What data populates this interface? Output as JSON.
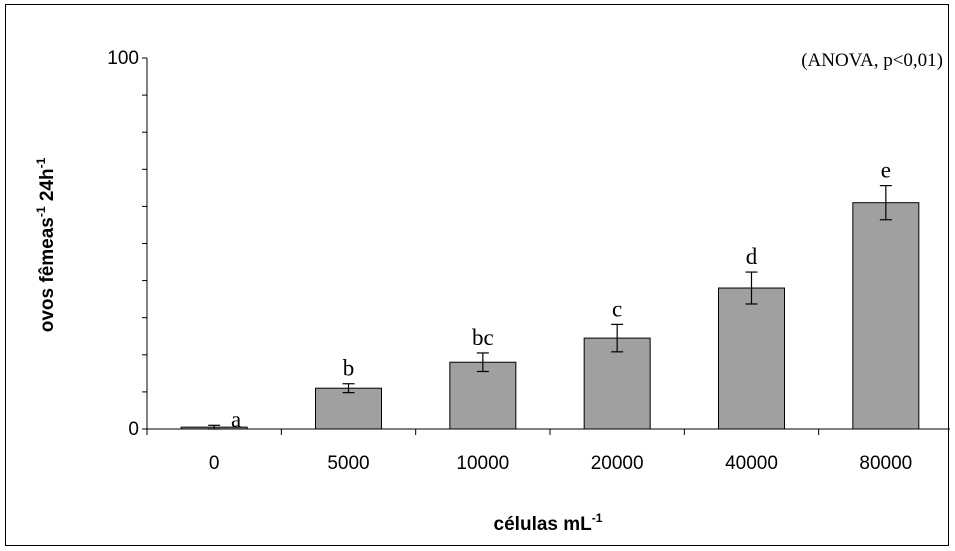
{
  "chart_data": {
    "type": "bar",
    "title": "",
    "annotation": "(ANOVA, p<0,01)",
    "xlabel": {
      "text": "células mL",
      "superscript": "-1"
    },
    "ylabel": {
      "parts": [
        {
          "text": "ovos fêmeas",
          "sup": "-1"
        },
        {
          "text": " 24h",
          "sup": "-1"
        }
      ]
    },
    "categories": [
      "0",
      "5000",
      "10000",
      "20000",
      "40000",
      "80000"
    ],
    "values": [
      0.5,
      11,
      18,
      24.5,
      38,
      61
    ],
    "errors": [
      0.5,
      1.2,
      2.5,
      3.7,
      4.3,
      4.6
    ],
    "significance": [
      "a",
      "b",
      "bc",
      "c",
      "d",
      "e"
    ],
    "ylim": [
      0,
      100
    ],
    "yticks": [
      "0",
      "100"
    ],
    "bar_color": "#a0a0a0",
    "grid": false,
    "legend": false
  }
}
